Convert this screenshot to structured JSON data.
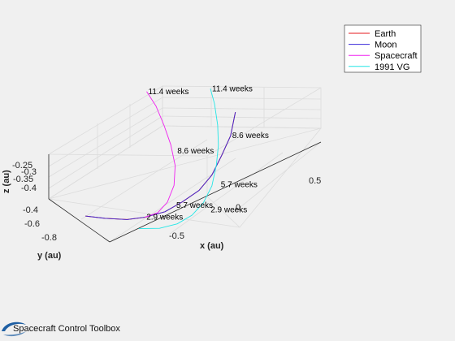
{
  "chart_data": {
    "type": "line",
    "projection": "3d",
    "grid": true,
    "legend_location": "top-right",
    "xlabel": "x (au)",
    "ylabel": "y (au)",
    "zlabel": "z (au)",
    "x_ticks": [
      "-0.5",
      "0",
      "0.5"
    ],
    "y_ticks": [
      "-0.4",
      "-0.6",
      "-0.8"
    ],
    "z_ticks": [
      "-0.25",
      "-0.3",
      "-0.35",
      "-0.4"
    ],
    "xlim": [
      -0.9,
      0.65
    ],
    "ylim": [
      -0.9,
      -0.35
    ],
    "zlim": [
      -0.42,
      -0.2
    ],
    "series": [
      {
        "name": "Earth",
        "color": "#e41a1c",
        "x": [
          -0.86,
          -0.75,
          -0.62,
          -0.5,
          -0.36,
          -0.22,
          -0.08,
          0.05,
          0.17,
          0.28,
          0.37
        ],
        "y": [
          -0.48,
          -0.52,
          -0.56,
          -0.58,
          -0.6,
          -0.6,
          -0.6,
          -0.58,
          -0.55,
          -0.52,
          -0.48
        ],
        "z": [
          -0.35,
          -0.36,
          -0.37,
          -0.375,
          -0.375,
          -0.37,
          -0.36,
          -0.345,
          -0.32,
          -0.295,
          -0.26
        ]
      },
      {
        "name": "Moon",
        "color": "#3a2ad9",
        "x": [
          -0.86,
          -0.75,
          -0.62,
          -0.5,
          -0.36,
          -0.22,
          -0.08,
          0.05,
          0.17,
          0.28,
          0.37
        ],
        "y": [
          -0.48,
          -0.52,
          -0.56,
          -0.58,
          -0.6,
          -0.6,
          -0.6,
          -0.58,
          -0.55,
          -0.52,
          -0.48
        ],
        "z": [
          -0.35,
          -0.36,
          -0.37,
          -0.375,
          -0.375,
          -0.37,
          -0.36,
          -0.345,
          -0.32,
          -0.295,
          -0.26
        ]
      },
      {
        "name": "Spacecraft",
        "color": "#f020f0",
        "x": [
          -0.5,
          -0.42,
          -0.34,
          -0.26,
          -0.2,
          -0.16,
          -0.14,
          -0.13,
          -0.13
        ],
        "y": [
          -0.58,
          -0.6,
          -0.6,
          -0.58,
          -0.54,
          -0.48,
          -0.42,
          -0.36,
          -0.3
        ],
        "z": [
          -0.375,
          -0.37,
          -0.355,
          -0.33,
          -0.3,
          -0.27,
          -0.24,
          -0.21,
          -0.19
        ]
      },
      {
        "name": "1991 VG",
        "color": "#22e6e6",
        "x": [
          -0.6,
          -0.48,
          -0.36,
          -0.24,
          -0.12,
          0.0,
          0.1,
          0.18,
          0.25,
          0.3,
          0.33
        ],
        "y": [
          -0.62,
          -0.66,
          -0.68,
          -0.68,
          -0.66,
          -0.62,
          -0.57,
          -0.52,
          -0.46,
          -0.4,
          -0.35
        ],
        "z": [
          -0.38,
          -0.385,
          -0.385,
          -0.38,
          -0.37,
          -0.355,
          -0.33,
          -0.305,
          -0.28,
          -0.25,
          -0.23
        ]
      }
    ],
    "annotations": [
      {
        "text": "11.4 weeks",
        "x": -0.13,
        "y": -0.3,
        "z": -0.19
      },
      {
        "text": "11.4 weeks",
        "x": 0.33,
        "y": -0.35,
        "z": -0.23
      },
      {
        "text": "8.6 weeks",
        "x": -0.12,
        "y": -0.48,
        "z": -0.29
      },
      {
        "text": "8.6 weeks",
        "x": 0.28,
        "y": -0.52,
        "z": -0.295
      },
      {
        "text": "5.7 weeks",
        "x": -0.28,
        "y": -0.6,
        "z": -0.37
      },
      {
        "text": "5.7 weeks",
        "x": 0.06,
        "y": -0.62,
        "z": -0.36
      },
      {
        "text": "2.9 weeks",
        "x": -0.5,
        "y": -0.58,
        "z": -0.375
      },
      {
        "text": "2.9 weeks",
        "x": -0.1,
        "y": -0.68,
        "z": -0.385
      }
    ]
  },
  "legend": [
    {
      "label": "Earth",
      "color": "#e41a1c"
    },
    {
      "label": "Moon",
      "color": "#3a2ad9"
    },
    {
      "label": "Spacecraft",
      "color": "#f020f0"
    },
    {
      "label": "1991 VG",
      "color": "#22e6e6"
    }
  ],
  "footer": {
    "logo_text": "Spacecraft Control Toolbox"
  }
}
